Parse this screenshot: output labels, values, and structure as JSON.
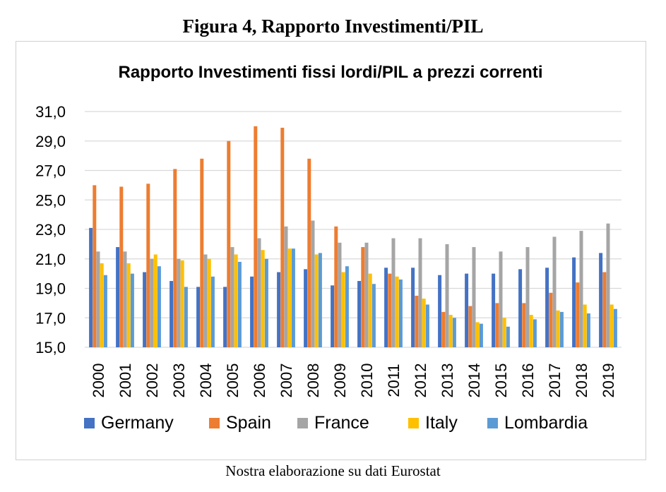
{
  "figure_title": "Figura 4, Rapporto Investimenti/PIL",
  "caption": "Nostra elaborazione su dati Eurostat",
  "chart_data": {
    "type": "bar",
    "title": "Rapporto Investimenti fissi lordi/PIL a prezzi correnti",
    "xlabel": "",
    "ylabel": "",
    "ylim": [
      15,
      31
    ],
    "yticks": [
      "15,0",
      "17,0",
      "19,0",
      "21,0",
      "23,0",
      "25,0",
      "27,0",
      "29,0",
      "31,0"
    ],
    "grid": true,
    "legend_position": "bottom",
    "categories": [
      "2000",
      "2001",
      "2002",
      "2003",
      "2004",
      "2005",
      "2006",
      "2007",
      "2008",
      "2009",
      "2010",
      "2011",
      "2012",
      "2013",
      "2014",
      "2015",
      "2016",
      "2017",
      "2018",
      "2019"
    ],
    "series": [
      {
        "name": "Germany",
        "color": "#4472C4",
        "values": [
          23.1,
          21.8,
          20.1,
          19.5,
          19.1,
          19.1,
          19.8,
          20.1,
          20.3,
          19.2,
          19.5,
          20.4,
          20.4,
          19.9,
          20.0,
          20.0,
          20.3,
          20.4,
          21.1,
          21.4
        ]
      },
      {
        "name": "Spain",
        "color": "#ED7D31",
        "values": [
          26.0,
          25.9,
          26.1,
          27.1,
          27.8,
          29.0,
          30.0,
          29.9,
          27.8,
          23.2,
          21.8,
          20.0,
          18.5,
          17.4,
          17.8,
          18.0,
          18.0,
          18.7,
          19.4,
          20.1
        ]
      },
      {
        "name": "France",
        "color": "#A5A5A5",
        "values": [
          21.5,
          21.5,
          21.0,
          21.0,
          21.3,
          21.8,
          22.4,
          23.2,
          23.6,
          22.1,
          22.1,
          22.4,
          22.4,
          22.0,
          21.8,
          21.5,
          21.8,
          22.5,
          22.9,
          23.4
        ]
      },
      {
        "name": "Italy",
        "color": "#FFC000",
        "values": [
          20.7,
          20.7,
          21.3,
          20.9,
          21.0,
          21.3,
          21.6,
          21.7,
          21.3,
          20.1,
          20.0,
          19.8,
          18.3,
          17.2,
          16.7,
          17.0,
          17.2,
          17.5,
          17.9,
          17.9
        ]
      },
      {
        "name": "Lombardia",
        "color": "#5B9BD5",
        "values": [
          19.9,
          20.0,
          20.5,
          19.1,
          19.8,
          20.8,
          21.0,
          21.7,
          21.4,
          20.5,
          19.3,
          19.6,
          17.9,
          17.0,
          16.6,
          16.4,
          16.9,
          17.4,
          17.3,
          17.6
        ]
      }
    ]
  }
}
